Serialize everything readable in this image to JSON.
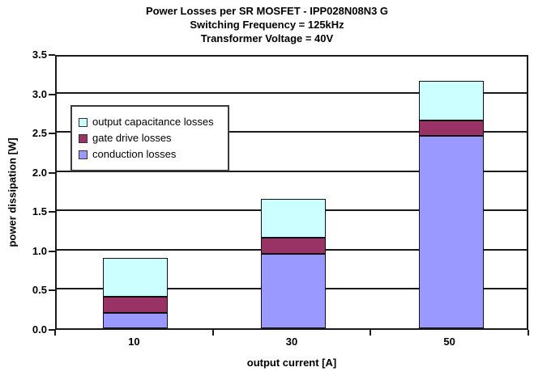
{
  "chart_data": {
    "type": "bar",
    "stacked": true,
    "title": "Power Losses per SR MOSFET - IPP028N08N3 G",
    "subtitle_frequency": "Switching Frequency  = 125kHz",
    "subtitle_voltage": "Transformer Voltage = 40V",
    "xlabel": "output current [A]",
    "ylabel": "power dissipation [W]",
    "categories": [
      "10",
      "30",
      "50"
    ],
    "series": [
      {
        "name": "conduction losses",
        "color": "#9999FF",
        "values": [
          0.2,
          0.95,
          2.45
        ]
      },
      {
        "name": "gate drive losses",
        "color": "#993366",
        "values": [
          0.2,
          0.2,
          0.2
        ]
      },
      {
        "name": "output capacitance losses",
        "color": "#CCFFFF",
        "values": [
          0.5,
          0.5,
          0.5
        ]
      }
    ],
    "stack_totals": [
      0.9,
      1.65,
      3.15
    ],
    "ylim": [
      0,
      3.5
    ],
    "ytick_step": 0.5,
    "ytick_labels": [
      "0.0",
      "0.5",
      "1.0",
      "1.5",
      "2.0",
      "2.5",
      "3.0",
      "3.5"
    ],
    "legend_position": "upper-left-inside",
    "legend_order_top_to_bottom": [
      "output capacitance losses",
      "gate drive losses",
      "conduction losses"
    ],
    "grid": "horizontal",
    "axis_color": "#1a1a1a",
    "text_color": "#000000",
    "background_color": "#ffffff"
  }
}
